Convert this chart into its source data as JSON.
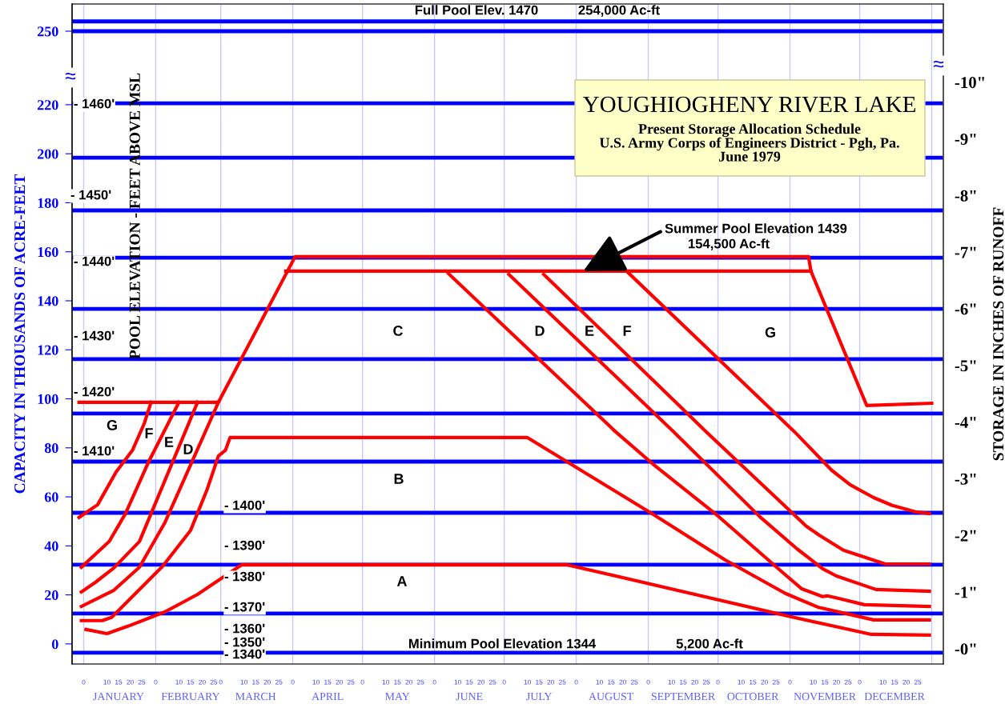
{
  "chart_data": {
    "type": "line",
    "title": "YOUGHIOGHENY RIVER LAKE",
    "subtitle": "Present Storage Allocation Schedule\nU.S. Army Corps of Engineers District - Pgh, Pa.\nJune 1979",
    "ylabel": "CAPACITY IN THOUSANDS OF ACRE-FEET",
    "y2label": "STORAGE IN INCHES OF RUNOFF",
    "xlim": [
      "1978-12-26",
      "1980-01-05"
    ],
    "x2lim": [
      "1978-12-26",
      "1980-01-05"
    ],
    "ylim": [
      -8.2,
      261.1
    ],
    "y2lim": [
      0.27,
      -11.38
    ],
    "yticks": [
      0,
      20,
      40,
      60,
      80,
      100,
      120,
      140,
      160,
      180,
      200,
      220,
      250
    ],
    "y2ticks": [
      {
        "value": 0,
        "label": "-0\""
      },
      {
        "value": -1,
        "label": "-1\""
      },
      {
        "value": -2,
        "label": "-2\""
      },
      {
        "value": -3,
        "label": "-3\""
      },
      {
        "value": -4,
        "label": "-4\""
      },
      {
        "value": -5,
        "label": "-5\""
      },
      {
        "value": -6,
        "label": "-6\""
      },
      {
        "value": -7,
        "label": "-7\""
      },
      {
        "value": -8,
        "label": "-8\""
      },
      {
        "value": -9,
        "label": "-9\""
      },
      {
        "value": -10,
        "label": "-10\""
      }
    ],
    "xticks": [
      {
        "value": "1978-12-31",
        "label": "0"
      },
      {
        "value": "1979-01-10",
        "label": "10"
      },
      {
        "value": "1979-01-15",
        "label": "15"
      },
      {
        "value": "1979-01-20",
        "label": "20"
      },
      {
        "value": "1979-01-25",
        "label": "25"
      },
      {
        "value": "1979-01-31",
        "label": "0"
      },
      {
        "value": "1979-02-10",
        "label": "10"
      },
      {
        "value": "1979-02-15",
        "label": "15"
      },
      {
        "value": "1979-02-20",
        "label": "20"
      },
      {
        "value": "1979-02-25",
        "label": "25"
      },
      {
        "value": "1979-02-28",
        "label": "0"
      },
      {
        "value": "1979-03-10",
        "label": "10"
      },
      {
        "value": "1979-03-15",
        "label": "15"
      },
      {
        "value": "1979-03-20",
        "label": "20"
      },
      {
        "value": "1979-03-25",
        "label": "25"
      },
      {
        "value": "1979-03-31",
        "label": "0"
      },
      {
        "value": "1979-04-10",
        "label": "10"
      },
      {
        "value": "1979-04-15",
        "label": "15"
      },
      {
        "value": "1979-04-20",
        "label": "20"
      },
      {
        "value": "1979-04-25",
        "label": "25"
      },
      {
        "value": "1979-04-30",
        "label": "0"
      },
      {
        "value": "1979-05-10",
        "label": "10"
      },
      {
        "value": "1979-05-15",
        "label": "15"
      },
      {
        "value": "1979-05-20",
        "label": "20"
      },
      {
        "value": "1979-05-25",
        "label": "25"
      },
      {
        "value": "1979-05-31",
        "label": "0"
      },
      {
        "value": "1979-06-10",
        "label": "10"
      },
      {
        "value": "1979-06-15",
        "label": "15"
      },
      {
        "value": "1979-06-20",
        "label": "20"
      },
      {
        "value": "1979-06-25",
        "label": "25"
      },
      {
        "value": "1979-06-30",
        "label": "0"
      },
      {
        "value": "1979-07-10",
        "label": "10"
      },
      {
        "value": "1979-07-15",
        "label": "15"
      },
      {
        "value": "1979-07-20",
        "label": "20"
      },
      {
        "value": "1979-07-25",
        "label": "25"
      },
      {
        "value": "1979-07-31",
        "label": "0"
      },
      {
        "value": "1979-08-10",
        "label": "10"
      },
      {
        "value": "1979-08-15",
        "label": "15"
      },
      {
        "value": "1979-08-20",
        "label": "20"
      },
      {
        "value": "1979-08-25",
        "label": "25"
      },
      {
        "value": "1979-08-31",
        "label": "0"
      },
      {
        "value": "1979-09-10",
        "label": "10"
      },
      {
        "value": "1979-09-15",
        "label": "15"
      },
      {
        "value": "1979-09-20",
        "label": "20"
      },
      {
        "value": "1979-09-25",
        "label": "25"
      },
      {
        "value": "1979-09-30",
        "label": "0"
      },
      {
        "value": "1979-10-10",
        "label": "10"
      },
      {
        "value": "1979-10-15",
        "label": "15"
      },
      {
        "value": "1979-10-20",
        "label": "20"
      },
      {
        "value": "1979-10-25",
        "label": "25"
      },
      {
        "value": "1979-10-31",
        "label": "0"
      },
      {
        "value": "1979-11-10",
        "label": "10"
      },
      {
        "value": "1979-11-15",
        "label": "15"
      },
      {
        "value": "1979-11-20",
        "label": "20"
      },
      {
        "value": "1979-11-25",
        "label": "25"
      },
      {
        "value": "1979-11-30",
        "label": "0"
      },
      {
        "value": "1979-12-10",
        "label": "10"
      },
      {
        "value": "1979-12-15",
        "label": "15"
      },
      {
        "value": "1979-12-20",
        "label": "20"
      },
      {
        "value": "1979-12-25",
        "label": "25"
      }
    ],
    "x2ticks": [
      {
        "value": "1979-01-15",
        "label": "JANUARY"
      },
      {
        "value": "1979-02-15",
        "label": "FEBRUARY"
      },
      {
        "value": "1979-03-15",
        "label": "MARCH"
      },
      {
        "value": "1979-04-15",
        "label": "APRIL"
      },
      {
        "value": "1979-05-15",
        "label": "MAY"
      },
      {
        "value": "1979-06-15",
        "label": "JUNE"
      },
      {
        "value": "1979-07-15",
        "label": "JULY"
      },
      {
        "value": "1979-08-15",
        "label": "AUGUST"
      },
      {
        "value": "1979-09-15",
        "label": "SEPTEMBER"
      },
      {
        "value": "1979-10-15",
        "label": "OCTOBER"
      },
      {
        "value": "1979-11-15",
        "label": "NOVEMBER"
      },
      {
        "value": "1979-12-15",
        "label": "DECEMBER"
      }
    ],
    "series": [
      {
        "color": "#ff0000",
        "x": [
          "1978-12-29",
          "1979-02-27",
          "1979-04-01",
          "1979-11-08",
          "1979-11-09",
          "1979-12-03",
          "1979-12-31"
        ],
        "values": [
          98.6,
          98.6,
          158.0,
          158.0,
          152.1,
          97.3,
          98.2
        ]
      },
      {
        "color": "#ff0000",
        "x": [
          "1979-03-28",
          "1979-11-09"
        ],
        "values": [
          152.1,
          152.1
        ]
      },
      {
        "color": "#ff0000",
        "x": [
          "1978-12-29",
          "1979-01-06",
          "1979-01-14",
          "1979-01-21",
          "1979-01-26",
          "1979-01-29"
        ],
        "values": [
          51.6,
          56.8,
          70.2,
          79.0,
          89.8,
          98.6
        ]
      },
      {
        "color": "#ff0000",
        "x": [
          "1978-12-30",
          "1979-01-11",
          "1979-01-18",
          "1979-01-28",
          "1979-02-10"
        ],
        "values": [
          31.3,
          41.8,
          53.2,
          74.4,
          98.6
        ]
      },
      {
        "color": "#ff0000",
        "x": [
          "1978-12-30",
          "1979-01-05",
          "1979-01-13",
          "1979-01-24",
          "1979-02-18"
        ],
        "values": [
          21.2,
          25.1,
          31.0,
          41.8,
          98.6
        ]
      },
      {
        "color": "#ff0000",
        "x": [
          "1978-12-30",
          "1979-01-13",
          "1979-01-24",
          "1979-02-04",
          "1979-02-27"
        ],
        "values": [
          15.3,
          21.9,
          31.3,
          49.6,
          98.6
        ]
      },
      {
        "color": "#ff0000",
        "x": [
          "1978-12-30",
          "1979-01-08",
          "1979-01-12",
          "1979-02-03",
          "1979-02-15",
          "1979-02-22",
          "1979-02-27",
          "1979-03-02",
          "1979-03-04",
          "1979-07-10",
          "1979-09-02",
          "1979-10-03",
          "1979-10-29",
          "1979-11-12",
          "1979-12-06",
          "1979-12-30"
        ],
        "values": [
          9.5,
          9.5,
          10.8,
          31.7,
          46.3,
          62.7,
          76.7,
          79.0,
          84.2,
          84.2,
          52.9,
          34.3,
          20.6,
          15.0,
          9.8,
          9.8
        ]
      },
      {
        "color": "#ff0000",
        "x": [
          "1979-01-01",
          "1979-01-10",
          "1979-01-19",
          "1979-02-04",
          "1979-02-18",
          "1979-03-09",
          "1979-07-27",
          "1979-10-30",
          "1979-12-05",
          "1979-12-30"
        ],
        "values": [
          5.9,
          4.2,
          7.2,
          13.1,
          20.2,
          32.3,
          32.3,
          11.4,
          3.9,
          3.6
        ]
      },
      {
        "color": "#ff0000",
        "x": [
          "1979-06-06",
          "1979-08-17",
          "1979-09-02",
          "1979-09-30",
          "1979-10-28",
          "1979-11-05",
          "1979-11-14",
          "1979-11-16",
          "1979-11-22",
          "1979-12-02",
          "1979-12-30"
        ],
        "values": [
          151.1,
          86.5,
          73.4,
          52.2,
          29.0,
          22.5,
          19.3,
          19.6,
          18.3,
          16.0,
          15.3
        ]
      },
      {
        "color": "#ff0000",
        "x": [
          "1979-07-02",
          "1979-09-11",
          "1979-10-18",
          "1979-11-03",
          "1979-11-14",
          "1979-11-20",
          "1979-12-07",
          "1979-12-30"
        ],
        "values": [
          150.8,
          86.5,
          51.9,
          38.8,
          30.7,
          27.7,
          22.2,
          21.5
        ]
      },
      {
        "color": "#ff0000",
        "x": [
          "1979-07-17",
          "1979-09-25",
          "1979-11-02",
          "1979-11-07",
          "1979-11-13",
          "1979-11-23",
          "1979-12-11",
          "1979-12-30"
        ],
        "values": [
          150.8,
          86.5,
          52.5,
          48.0,
          44.1,
          38.2,
          32.6,
          32.6
        ]
      },
      {
        "color": "#ff0000",
        "x": [
          "1979-08-22",
          "1979-11-02",
          "1979-11-18",
          "1979-11-26",
          "1979-12-06",
          "1979-12-14",
          "1979-12-24",
          "1979-12-30"
        ],
        "values": [
          151.8,
          86.5,
          70.8,
          64.9,
          59.7,
          56.5,
          53.9,
          53.2
        ]
      }
    ],
    "ref_lines": [
      {
        "axis": "y",
        "value": 254,
        "color": "#0000ff"
      },
      {
        "axis": "y",
        "value": 250,
        "color": "#0000ff"
      },
      {
        "axis": "y",
        "value": 220.6,
        "color": "#0000ff"
      },
      {
        "axis": "y",
        "value": 198.4,
        "color": "#0000ff"
      },
      {
        "axis": "y",
        "value": 176.9,
        "color": "#0000ff"
      },
      {
        "axis": "y",
        "value": 157.6,
        "color": "#0000ff"
      },
      {
        "axis": "y",
        "value": 136.7,
        "color": "#0000ff"
      },
      {
        "axis": "y",
        "value": 116.2,
        "color": "#0000ff"
      },
      {
        "axis": "y",
        "value": 94.0,
        "color": "#0000ff"
      },
      {
        "axis": "y",
        "value": 74.4,
        "color": "#0000ff"
      },
      {
        "axis": "y",
        "value": 53.5,
        "color": "#0000ff"
      },
      {
        "axis": "y",
        "value": 32.3,
        "color": "#0000ff"
      },
      {
        "axis": "y",
        "value": 12.4,
        "color": "#0000ff"
      },
      {
        "axis": "y",
        "value": -3.6,
        "color": "#0000ff"
      },
      {
        "axis": "x",
        "value": "1978-12-31",
        "color": "#c8c8ff"
      },
      {
        "axis": "x",
        "value": "1979-01-31",
        "color": "#c8c8ff"
      },
      {
        "axis": "x",
        "value": "1979-02-28",
        "color": "#c8c8ff"
      },
      {
        "axis": "x",
        "value": "1979-03-31",
        "color": "#c8c8ff"
      },
      {
        "axis": "x",
        "value": "1979-04-30",
        "color": "#c8c8ff"
      },
      {
        "axis": "x",
        "value": "1979-05-31",
        "color": "#c8c8ff"
      },
      {
        "axis": "x",
        "value": "1979-06-30",
        "color": "#c8c8ff"
      },
      {
        "axis": "x",
        "value": "1979-07-31",
        "color": "#c8c8ff"
      },
      {
        "axis": "x",
        "value": "1979-08-31",
        "color": "#c8c8ff"
      },
      {
        "axis": "x",
        "value": "1979-09-30",
        "color": "#c8c8ff"
      },
      {
        "axis": "x",
        "value": "1979-10-31",
        "color": "#c8c8ff"
      },
      {
        "axis": "x",
        "value": "1979-11-30",
        "color": "#c8c8ff"
      },
      {
        "axis": "x",
        "value": "1979-12-31",
        "color": "#c8c8ff"
      }
    ],
    "annotations": [
      {
        "text": "Summer Pool Elevation 1439",
        "x": "1979-08-03",
        "y": 152.1
      },
      "154,500 Ac-ft",
      "Full Pool Elev. 1470",
      "254,000 Ac-ft",
      "Minimum Pool Elevation 1344",
      "5,200 Ac-ft",
      "A",
      "B",
      "C",
      "D",
      "E",
      "F",
      "G",
      "G",
      "F",
      "E",
      "D",
      "- 1460'",
      "- 1450'",
      "- 1440'",
      "- 1430'",
      "- 1420'",
      "- 1410'",
      "- 1400'",
      "- 1390'",
      "- 1380'",
      "- 1370'",
      "- 1360'",
      "- 1350'",
      "- 1340'",
      "≈",
      "≈",
      "POOL ELEVATION - FEET ABOVE MSL"
    ]
  }
}
